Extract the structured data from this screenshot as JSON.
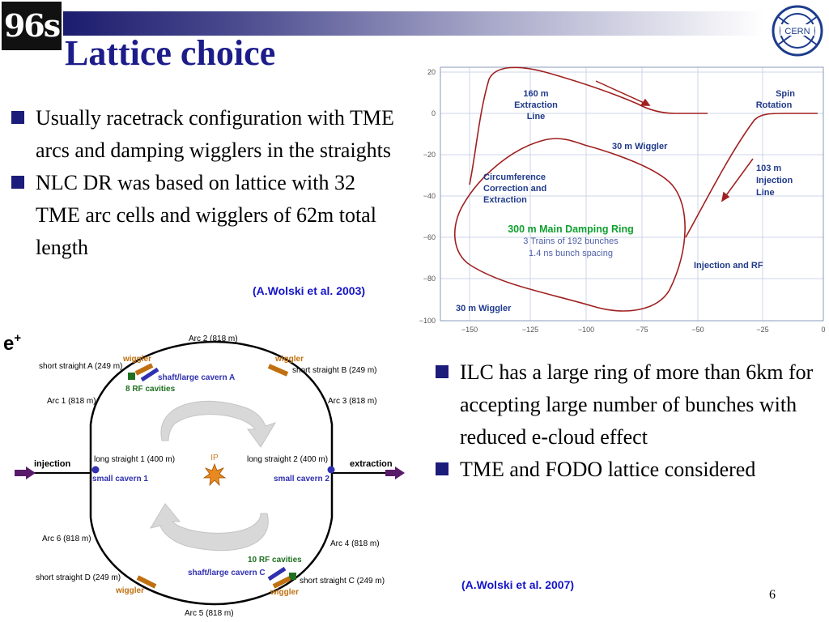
{
  "slide": {
    "title": "Lattice choice",
    "page_number": "6",
    "logo_text": "96s"
  },
  "left_bullets": [
    "Usually racetrack configuration with TME arcs and damping wigglers in the straights",
    "NLC DR was based on lattice with 32 TME  arc cells and wigglers of 62m total length"
  ],
  "right_bullets": [
    "ILC has a large ring of more than 6km for accepting large number of bunches with reduced e-cloud effect",
    "TME and FODO lattice considered"
  ],
  "refs": {
    "nlc": "(A.Wolski et al. 2003)",
    "ilc": "(A.Wolski et al. 2007)"
  },
  "nlc_plot": {
    "y_ticks": [
      "20",
      "0",
      "−20",
      "−40",
      "−60",
      "−80",
      "−100"
    ],
    "x_ticks": [
      "−150",
      "−125",
      "−100",
      "−75",
      "−50",
      "−25",
      "0"
    ],
    "labels": {
      "extraction_1": "160 m",
      "extraction_2": "Extraction",
      "extraction_3": "Line",
      "spin_1": "Spin",
      "spin_2": "Rotation",
      "wiggler_top": "30 m Wiggler",
      "injection_1": "103 m",
      "injection_2": "Injection",
      "injection_3": "Line",
      "circ_1": "Circumference",
      "circ_2": "Correction and",
      "circ_3": "Extraction",
      "main_ring": "300 m Main Damping Ring",
      "trains": "3 Trains of 192 bunches",
      "spacing": "1.4 ns bunch spacing",
      "inj_rf": "Injection and RF",
      "wiggler_bottom": "30 m Wiggler"
    }
  },
  "ilc_ring": {
    "positron": "e",
    "positron_sup": "+",
    "ip": "IP",
    "arc2": "Arc 2 (818 m)",
    "arc1": "Arc 1 (818 m)",
    "arc3": "Arc 3 (818 m)",
    "arc4": "Arc 4 (818 m)",
    "arc5": "Arc 5 (818 m)",
    "arc6": "Arc 6 (818 m)",
    "ssA": "short straight A (249 m)",
    "ssB": "short straight B (249 m)",
    "ssC": "short straight C (249 m)",
    "ssD": "short straight D (249 m)",
    "wiggler": "wiggler",
    "shaftA": "shaft/large cavern A",
    "shaftC": "shaft/large cavern C",
    "rf8": "8 RF cavities",
    "rf10": "10 RF cavities",
    "ls1": "long straight 1 (400 m)",
    "ls2": "long straight 2 (400 m)",
    "sc1": "small cavern 1",
    "sc2": "small cavern 2",
    "injection": "injection",
    "extraction": "extraction"
  },
  "colors": {
    "title": "#1c1c8a",
    "ring_path": "#a02020",
    "plot_label": "#203a8a",
    "main_ring_label": "#10a030",
    "cavern_blue": "#3030b0",
    "rf_green": "#207020",
    "wiggler_orange": "#c07010",
    "arrow_purple": "#5a1a6a",
    "ref_blue": "#1414c8"
  }
}
